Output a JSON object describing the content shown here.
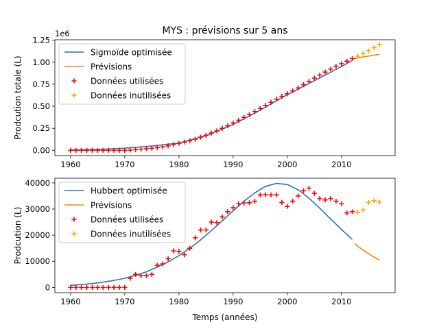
{
  "title": "MYS : prévisions sur 5 ans",
  "colors": {
    "fit": "#1f77b4",
    "forecast": "#ff7f0e",
    "used": "#ff0000",
    "unused": "#ffa500"
  },
  "chart_data": [
    {
      "type": "line",
      "title": "MYS : prévisions sur 5 ans",
      "xlabel": "",
      "ylabel": "Prodcution totale (L)",
      "offset_text": "1e6",
      "xlim": [
        1957.1,
        2019.9
      ],
      "ylim": [
        -0.06,
        1.255
      ],
      "x_ticks": [
        1960,
        1970,
        1980,
        1990,
        2000,
        2010
      ],
      "x_tick_labels": [
        "1960",
        "1970",
        "1980",
        "1990",
        "2000",
        "2010"
      ],
      "y_ticks": [
        0,
        0.25,
        0.5,
        0.75,
        1.0,
        1.25
      ],
      "y_tick_labels": [
        "0.00",
        "0.25",
        "0.50",
        "0.75",
        "1.00",
        "1.25"
      ],
      "legend_position": "top-left",
      "series": [
        {
          "name": "Sigmoïde optimisée",
          "kind": "line",
          "color": "#1f77b4",
          "x": [
            1960,
            1965,
            1970,
            1975,
            1980,
            1985,
            1990,
            1995,
            2000,
            2005,
            2010,
            2012
          ],
          "y": [
            0.003,
            0.01,
            0.024,
            0.048,
            0.083,
            0.165,
            0.293,
            0.455,
            0.632,
            0.79,
            0.95,
            1.02
          ]
        },
        {
          "name": "Prévisions",
          "kind": "line",
          "color": "#ff7f0e",
          "x": [
            2012,
            2013,
            2014,
            2015,
            2016,
            2017
          ],
          "y": [
            1.035,
            1.05,
            1.06,
            1.07,
            1.08,
            1.09
          ]
        },
        {
          "name": "Données utilisées",
          "kind": "marker",
          "color": "#ff0000",
          "x": [
            1960,
            1961,
            1962,
            1963,
            1964,
            1965,
            1966,
            1967,
            1968,
            1969,
            1970,
            1971,
            1972,
            1973,
            1974,
            1975,
            1976,
            1977,
            1978,
            1979,
            1980,
            1981,
            1982,
            1983,
            1984,
            1985,
            1986,
            1987,
            1988,
            1989,
            1990,
            1991,
            1992,
            1993,
            1994,
            1995,
            1996,
            1997,
            1998,
            1999,
            2000,
            2001,
            2002,
            2003,
            2004,
            2005,
            2006,
            2007,
            2008,
            2009,
            2010,
            2011,
            2012
          ],
          "y": [
            0.0,
            0.0,
            0.0,
            0.0,
            0.0,
            0.0,
            0.0,
            0.0,
            0.0,
            0.0,
            0.0,
            0.003,
            0.008,
            0.013,
            0.018,
            0.023,
            0.031,
            0.04,
            0.051,
            0.065,
            0.079,
            0.093,
            0.108,
            0.127,
            0.149,
            0.171,
            0.196,
            0.221,
            0.25,
            0.279,
            0.31,
            0.341,
            0.374,
            0.406,
            0.44,
            0.475,
            0.51,
            0.545,
            0.581,
            0.612,
            0.642,
            0.675,
            0.708,
            0.745,
            0.783,
            0.819,
            0.854,
            0.888,
            0.922,
            0.954,
            0.983,
            1.012,
            1.042
          ]
        },
        {
          "name": "Données inutilisées",
          "kind": "marker",
          "color": "#ffa500",
          "x": [
            2013,
            2014,
            2015,
            2016,
            2017
          ],
          "y": [
            1.07,
            1.1,
            1.13,
            1.165,
            1.2
          ]
        }
      ]
    },
    {
      "type": "line",
      "title": "",
      "xlabel": "Temps (années)",
      "ylabel": "Prodcution (L)",
      "xlim": [
        1957.1,
        2019.9
      ],
      "ylim": [
        -2000,
        41800
      ],
      "x_ticks": [
        1960,
        1970,
        1980,
        1990,
        2000,
        2010
      ],
      "x_tick_labels": [
        "1960",
        "1970",
        "1980",
        "1990",
        "2000",
        "2010"
      ],
      "y_ticks": [
        0,
        10000,
        20000,
        30000,
        40000
      ],
      "y_tick_labels": [
        "0",
        "10000",
        "20000",
        "30000",
        "40000"
      ],
      "legend_position": "top-left",
      "series": [
        {
          "name": "Hubbert optimisée",
          "kind": "line",
          "color": "#1f77b4",
          "x": [
            1960,
            1962,
            1964,
            1966,
            1968,
            1970,
            1972,
            1974,
            1976,
            1978,
            1980,
            1982,
            1984,
            1986,
            1988,
            1990,
            1992,
            1994,
            1996,
            1998,
            2000,
            2002,
            2004,
            2006,
            2008,
            2010,
            2012
          ],
          "y": [
            800,
            1100,
            1500,
            2000,
            2700,
            3500,
            4600,
            6000,
            7800,
            9800,
            12200,
            15000,
            18200,
            21800,
            25500,
            29300,
            33000,
            36200,
            38700,
            39800,
            39400,
            37400,
            34200,
            30300,
            26200,
            22200,
            18400
          ]
        },
        {
          "name": "Prévisions",
          "kind": "line",
          "color": "#ff7f0e",
          "x": [
            2012.5,
            2013,
            2014,
            2015,
            2016,
            2017
          ],
          "y": [
            16800,
            15800,
            14300,
            12900,
            11600,
            10500
          ]
        },
        {
          "name": "Données utilisées",
          "kind": "marker",
          "color": "#ff0000",
          "x": [
            1960,
            1961,
            1962,
            1963,
            1964,
            1965,
            1966,
            1967,
            1968,
            1969,
            1970,
            1971,
            1972,
            1973,
            1974,
            1975,
            1976,
            1977,
            1978,
            1979,
            1980,
            1981,
            1982,
            1983,
            1984,
            1985,
            1986,
            1987,
            1988,
            1989,
            1990,
            1991,
            1992,
            1993,
            1994,
            1995,
            1996,
            1997,
            1998,
            1999,
            2000,
            2001,
            2002,
            2003,
            2004,
            2005,
            2006,
            2007,
            2008,
            2009,
            2010,
            2011,
            2012
          ],
          "y": [
            0,
            0,
            0,
            0,
            0,
            0,
            0,
            0,
            0,
            0,
            0,
            3500,
            5000,
            4500,
            4500,
            5000,
            8500,
            9000,
            11000,
            14000,
            13800,
            12500,
            15000,
            19000,
            22000,
            22000,
            25000,
            24800,
            27000,
            29000,
            30500,
            32000,
            32300,
            32400,
            33000,
            35400,
            35500,
            35400,
            35400,
            32500,
            31000,
            33000,
            35000,
            37000,
            38000,
            36000,
            34000,
            33500,
            34000,
            33000,
            32000,
            28500,
            29000
          ]
        },
        {
          "name": "Données inutilisées",
          "kind": "marker",
          "color": "#ffa500",
          "x": [
            2013,
            2014,
            2015,
            2016,
            2017
          ],
          "y": [
            28800,
            29700,
            32500,
            33200,
            32700
          ]
        }
      ]
    }
  ]
}
